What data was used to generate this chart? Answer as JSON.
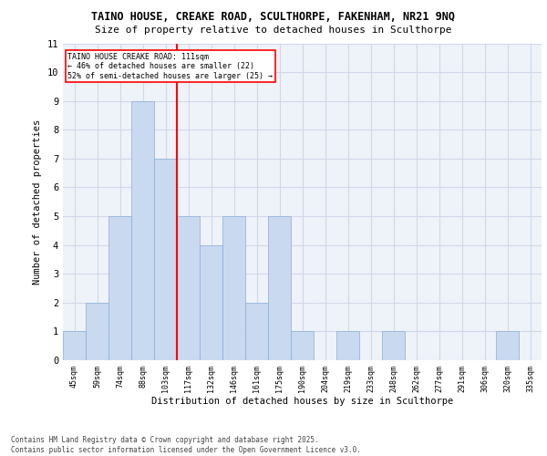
{
  "title_line1": "TAINO HOUSE, CREAKE ROAD, SCULTHORPE, FAKENHAM, NR21 9NQ",
  "title_line2": "Size of property relative to detached houses in Sculthorpe",
  "xlabel": "Distribution of detached houses by size in Sculthorpe",
  "ylabel": "Number of detached properties",
  "categories": [
    "45sqm",
    "59sqm",
    "74sqm",
    "88sqm",
    "103sqm",
    "117sqm",
    "132sqm",
    "146sqm",
    "161sqm",
    "175sqm",
    "190sqm",
    "204sqm",
    "219sqm",
    "233sqm",
    "248sqm",
    "262sqm",
    "277sqm",
    "291sqm",
    "306sqm",
    "320sqm",
    "335sqm"
  ],
  "values": [
    1,
    2,
    5,
    9,
    7,
    5,
    4,
    5,
    2,
    5,
    1,
    0,
    1,
    0,
    1,
    0,
    0,
    0,
    0,
    1,
    0
  ],
  "bar_color": "#c9d9f0",
  "bar_edge_color": "#8aadd4",
  "grid_color": "#d0d8e8",
  "background_color": "#eef2f9",
  "ylim": [
    0,
    11
  ],
  "yticks": [
    0,
    1,
    2,
    3,
    4,
    5,
    6,
    7,
    8,
    9,
    10,
    11
  ],
  "annotation_text": "TAINO HOUSE CREAKE ROAD: 111sqm\n← 46% of detached houses are smaller (22)\n52% of semi-detached houses are larger (25) →",
  "vline_x_index": 4.5,
  "footer_line1": "Contains HM Land Registry data © Crown copyright and database right 2025.",
  "footer_line2": "Contains public sector information licensed under the Open Government Licence v3.0."
}
